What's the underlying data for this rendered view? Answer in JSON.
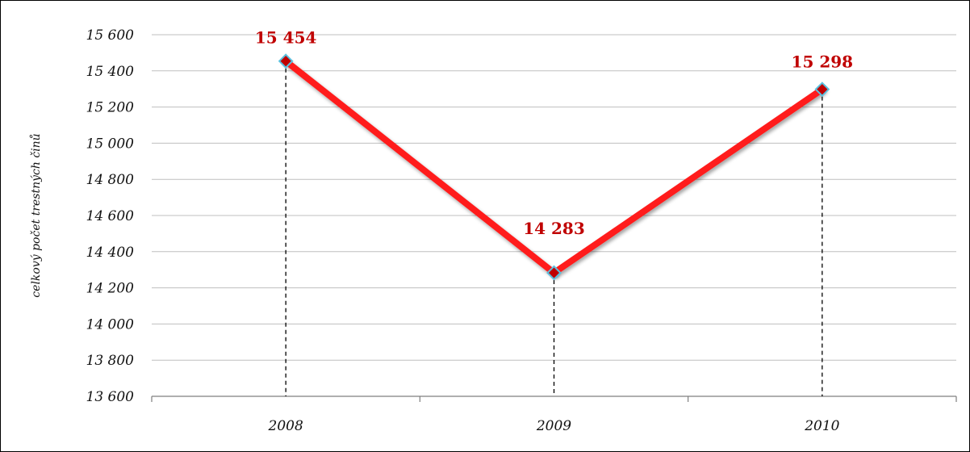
{
  "chart_data": {
    "type": "line",
    "title": "",
    "xlabel": "",
    "ylabel": "celkový počet trestných činů",
    "categories": [
      "2008",
      "2009",
      "2010"
    ],
    "series": [
      {
        "values": [
          15454,
          14283,
          15298
        ]
      }
    ],
    "data_labels": [
      "15 454",
      "14 283",
      "15 298"
    ],
    "ylim": [
      13600,
      15600
    ],
    "yticks": [
      13600,
      13800,
      14000,
      14200,
      14400,
      14600,
      14800,
      15000,
      15200,
      15400,
      15600
    ],
    "ytick_labels": [
      "13 600",
      "13 800",
      "14 000",
      "14 200",
      "14 400",
      "14 600",
      "14 800",
      "15 000",
      "15 200",
      "15 400",
      "15 600"
    ],
    "grid": "horizontal",
    "drop_lines": true,
    "legend": "none",
    "colors": {
      "line": "#ff1a1a",
      "marker_fill": "#c00000",
      "marker_edge": "#5bc0de",
      "label": "#c00000",
      "grid": "#bfbfbf",
      "axis": "#7f7f7f"
    }
  }
}
